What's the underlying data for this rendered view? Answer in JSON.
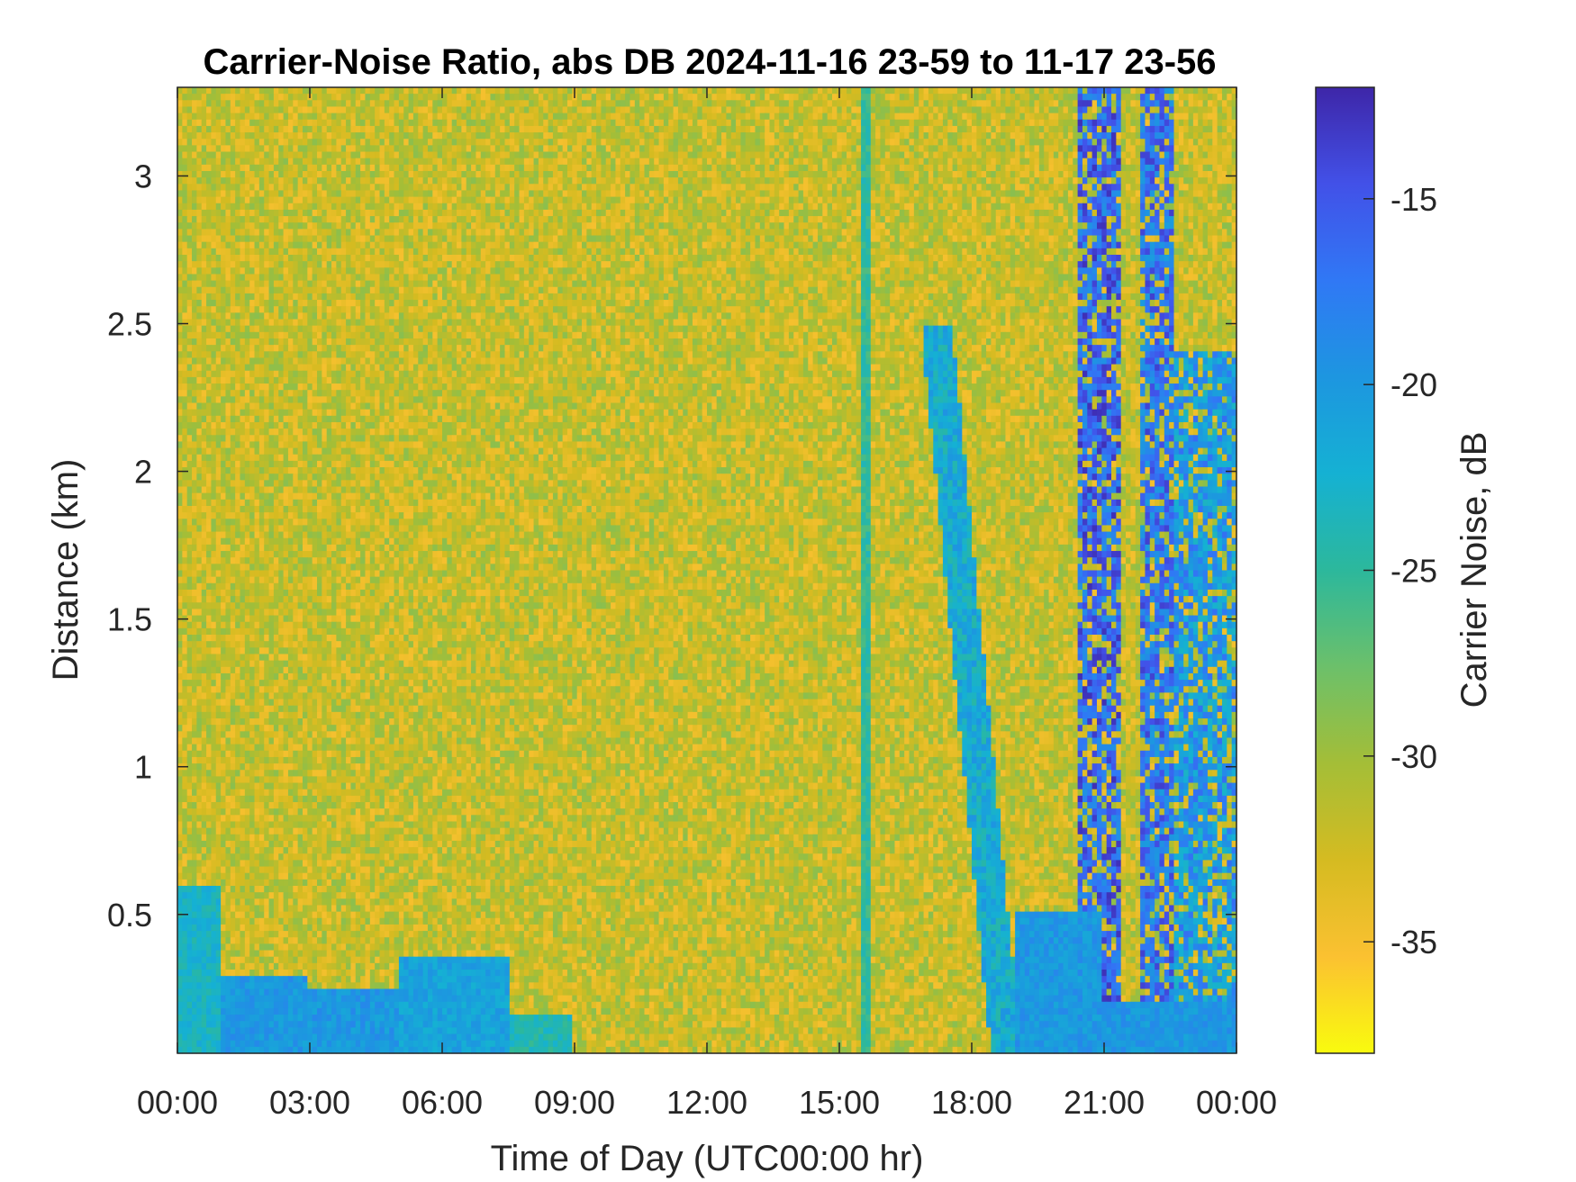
{
  "chart_data": {
    "type": "heatmap",
    "title": "Carrier-Noise Ratio, abs DB 2024-11-16 23-59 to 11-17 23-56",
    "xlabel": "Time of Day (UTC00:00 hr)",
    "ylabel": "Distance (km)",
    "colorbar_label": "Carrier Noise, dB",
    "x_ticks": [
      {
        "label": "00:00",
        "hours": 0
      },
      {
        "label": "03:00",
        "hours": 3
      },
      {
        "label": "06:00",
        "hours": 6
      },
      {
        "label": "09:00",
        "hours": 9
      },
      {
        "label": "12:00",
        "hours": 12
      },
      {
        "label": "15:00",
        "hours": 15
      },
      {
        "label": "18:00",
        "hours": 18
      },
      {
        "label": "21:00",
        "hours": 21
      },
      {
        "label": "00:00",
        "hours": 24
      }
    ],
    "x_range_hours": [
      0,
      24
    ],
    "y_ticks": [
      {
        "label": "0.5",
        "value": 0.5
      },
      {
        "label": "1",
        "value": 1
      },
      {
        "label": "1.5",
        "value": 1.5
      },
      {
        "label": "2",
        "value": 2
      },
      {
        "label": "2.5",
        "value": 2.5
      },
      {
        "label": "3",
        "value": 3
      }
    ],
    "y_range_km": [
      0.03,
      3.3
    ],
    "colorbar_ticks": [
      {
        "label": "-15",
        "value": -15
      },
      {
        "label": "-20",
        "value": -20
      },
      {
        "label": "-25",
        "value": -25
      },
      {
        "label": "-30",
        "value": -30
      },
      {
        "label": "-35",
        "value": -35
      }
    ],
    "color_range_db": [
      -38,
      -12
    ],
    "colormap": [
      "#f9fb0e",
      "#fbc131",
      "#d5bb21",
      "#a4be37",
      "#6cc06a",
      "#2cb89c",
      "#15b1d3",
      "#1d96e0",
      "#3078f5",
      "#4251e8",
      "#3e26a8"
    ],
    "grid": false,
    "regions": {
      "background_db": -32,
      "low_layer": [
        {
          "hours": [
            0.0,
            1.0
          ],
          "height_km": 0.6,
          "db": -23
        },
        {
          "hours": [
            1.0,
            3.0
          ],
          "height_km": 0.3,
          "db": -20
        },
        {
          "hours": [
            3.0,
            5.0
          ],
          "height_km": 0.25,
          "db": -20
        },
        {
          "hours": [
            5.0,
            7.5
          ],
          "height_km": 0.35,
          "db": -21
        },
        {
          "hours": [
            7.5,
            9.0
          ],
          "height_km": 0.15,
          "db": -24
        },
        {
          "hours": [
            19.0,
            21.0
          ],
          "height_km": 0.5,
          "db": -20
        },
        {
          "hours": [
            21.0,
            24.0
          ],
          "height_km": 0.2,
          "db": -20
        }
      ],
      "slanted_band": {
        "hours_top": 17.2,
        "hours_bottom": 18.8,
        "top_km": 2.5,
        "db": -22
      },
      "vertical_streak_hours": 15.6,
      "rain_column": [
        {
          "hours": [
            20.4,
            21.4
          ],
          "top_km": 3.3,
          "db": -16
        },
        {
          "hours": [
            21.8,
            22.6
          ],
          "top_km": 3.3,
          "db": -17
        },
        {
          "hours": [
            22.6,
            24.0
          ],
          "top_km": 2.4,
          "db": -20
        }
      ]
    }
  }
}
